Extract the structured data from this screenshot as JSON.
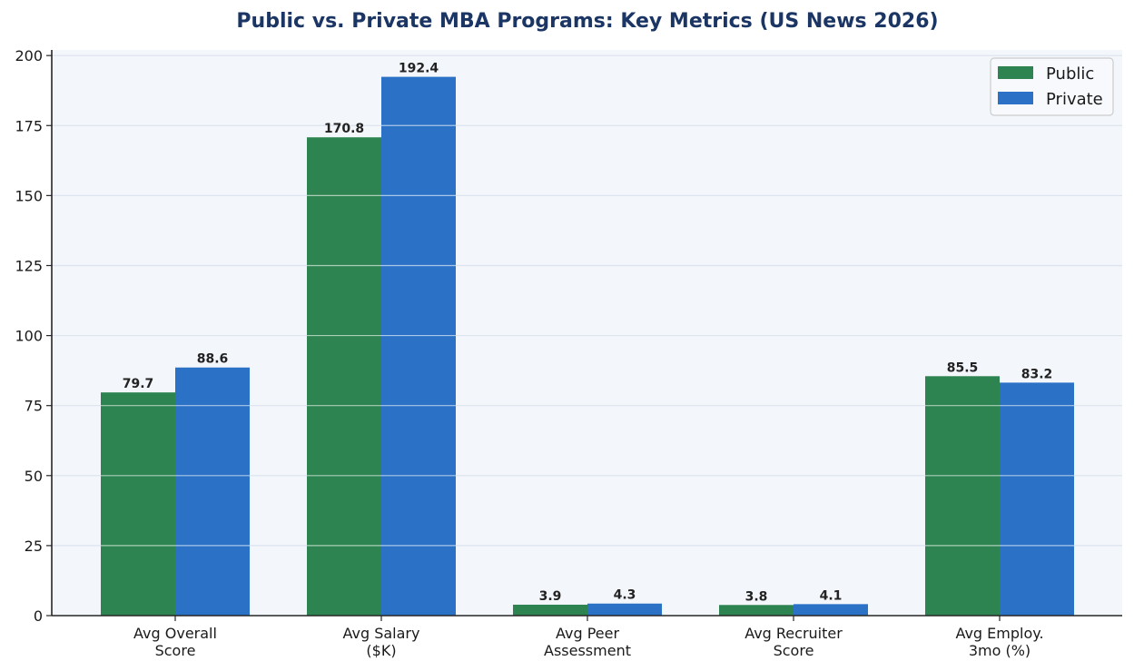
{
  "chart_data": {
    "type": "bar",
    "title": "Public vs. Private MBA Programs: Key Metrics (US News 2026)",
    "xlabel": "",
    "ylabel": "",
    "categories": [
      [
        "Avg Overall",
        "Score"
      ],
      [
        "Avg Salary",
        "($K)"
      ],
      [
        "Avg Peer",
        "Assessment"
      ],
      [
        "Avg Recruiter",
        "Score"
      ],
      [
        "Avg Employ.",
        "3mo (%)"
      ]
    ],
    "series": [
      {
        "name": "Public",
        "color": "#2e8450",
        "values": [
          79.7,
          170.8,
          3.9,
          3.8,
          85.5
        ],
        "labels": [
          "79.7",
          "170.8",
          "3.9",
          "3.8",
          "85.5"
        ]
      },
      {
        "name": "Private",
        "color": "#2b72c6",
        "values": [
          88.6,
          192.4,
          4.3,
          4.1,
          83.2
        ],
        "labels": [
          "88.6",
          "192.4",
          "4.3",
          "4.1",
          "83.2"
        ]
      }
    ],
    "ylim": [
      0,
      202
    ],
    "yticks": [
      0,
      25,
      50,
      75,
      100,
      125,
      150,
      175,
      200
    ],
    "grid": true,
    "legend_position": "top-right",
    "plot_background": "#f3f6fb",
    "grid_color": "#dde4ef"
  }
}
